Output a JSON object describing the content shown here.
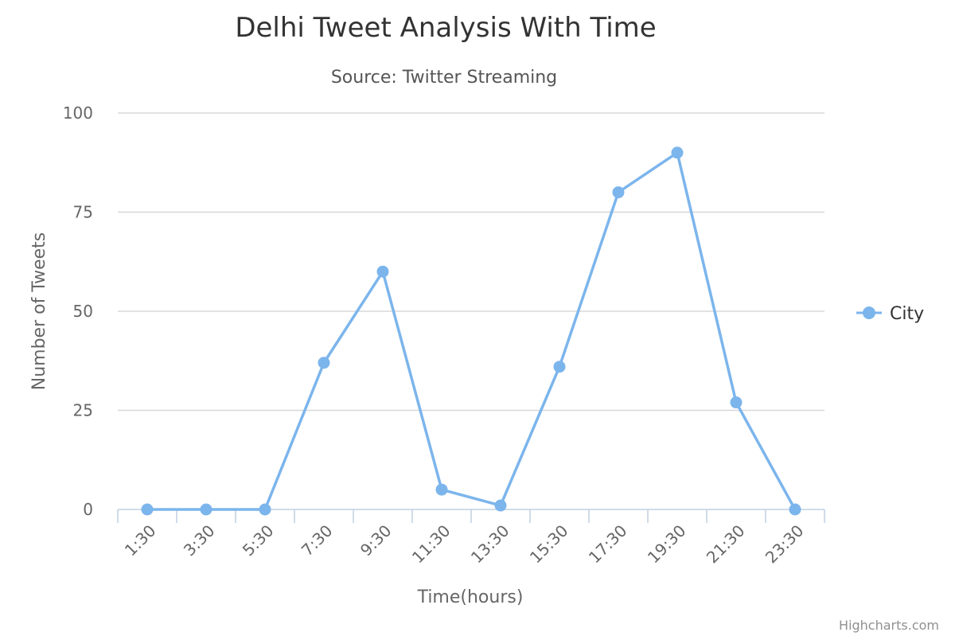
{
  "chart_data": {
    "type": "line",
    "title": "Delhi Tweet Analysis With Time",
    "subtitle": "Source: Twitter Streaming",
    "xlabel": "Time(hours)",
    "ylabel": "Number of Tweets",
    "categories": [
      "1:30",
      "3:30",
      "5:30",
      "7:30",
      "9:30",
      "11:30",
      "13:30",
      "15:30",
      "17:30",
      "19:30",
      "21:30",
      "23:30"
    ],
    "series": [
      {
        "name": "City",
        "color": "#7cb5ec",
        "values": [
          0,
          0,
          0,
          37,
          60,
          5,
          1,
          36,
          80,
          90,
          27,
          0
        ]
      }
    ],
    "ylim": [
      0,
      100
    ],
    "yticks": [
      0,
      25,
      50,
      75,
      100
    ],
    "grid": true,
    "legend_position": "right",
    "credits": "Highcharts.com",
    "colors": {
      "title": "#333333",
      "subtitle": "#555555",
      "axis_label": "#666666",
      "tick_label": "#666666",
      "grid": "#d8d8d8",
      "axis_line": "#c0d0e0",
      "legend_text": "#333333",
      "credits": "#909090"
    }
  }
}
